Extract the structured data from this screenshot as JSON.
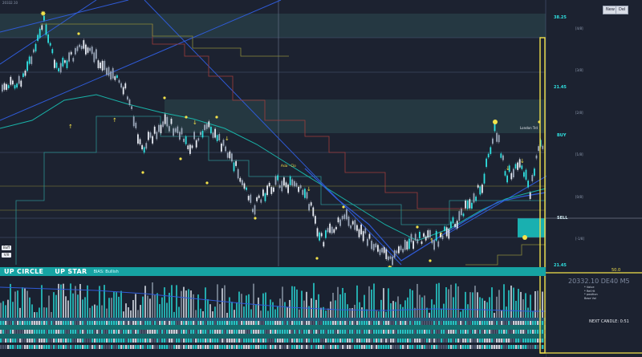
{
  "header": {
    "title": "20332.10",
    "new_button": "New",
    "del_button": "Del"
  },
  "banner": {
    "up_circle": "UP CIRCLE",
    "up_star": "UP STAR",
    "bias": "BIAS: Bullish"
  },
  "status": {
    "price_readout": "20332.10 DE40 M5",
    "next_candle": "NEXT CANDLE: 0:51"
  },
  "levels": {
    "l1": "38.25",
    "l2": "21.45",
    "l3": "21.45",
    "buy": "BUY",
    "sell": "SELL",
    "l50": "50.0"
  },
  "fib_labels": [
    "[4/8]",
    "[3/8]",
    "[2/8]",
    "[1/8]",
    "[0/8]",
    "[-1/8]"
  ],
  "left_pills": [
    "Buff",
    "V/II"
  ],
  "mini_panel": [
    "* Value",
    "* Ref.Ht",
    "* position",
    "Base Vol"
  ],
  "chart_annotations": {
    "london": "London Trd",
    "asia": "Asia - Clo"
  },
  "colors": {
    "background": "#1c2230",
    "cyan": "#2fe0e0",
    "teal": "#16a3a3",
    "yellow": "#f3e24a",
    "blue": "#2f5bd8",
    "white_candle": "#e7ebf3"
  }
}
